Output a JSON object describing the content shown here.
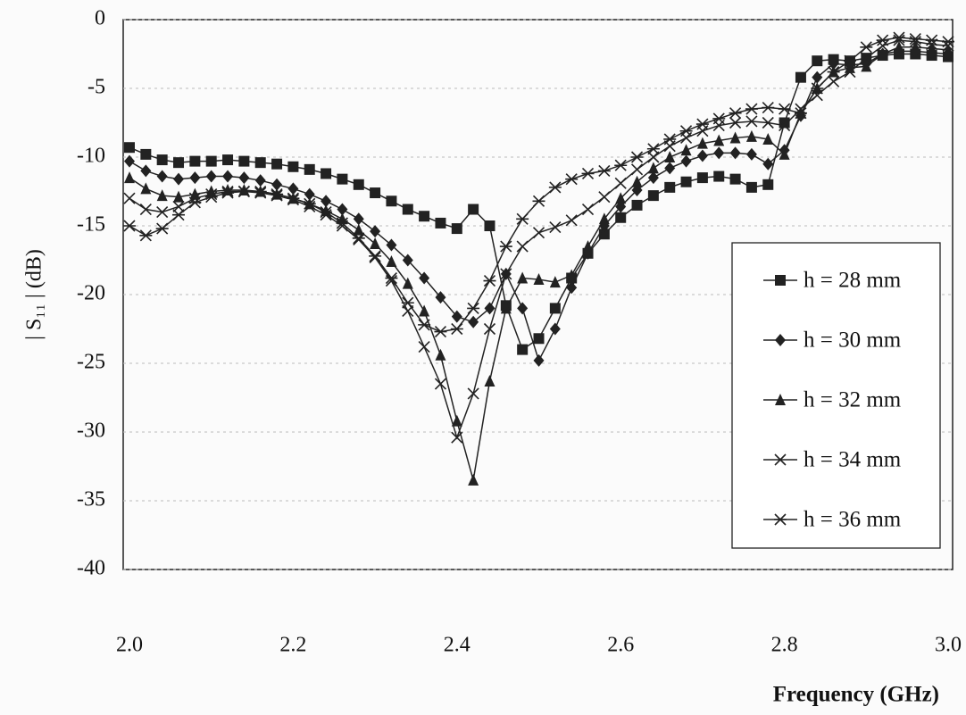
{
  "chart_data": {
    "type": "line",
    "x_label": "Frequency (GHz)",
    "y_label": "| S₁₁ | (dB)",
    "x": [
      2.0,
      2.02,
      2.04,
      2.06,
      2.08,
      2.1,
      2.12,
      2.14,
      2.16,
      2.18,
      2.2,
      2.22,
      2.24,
      2.26,
      2.28,
      2.3,
      2.32,
      2.34,
      2.36,
      2.38,
      2.4,
      2.42,
      2.44,
      2.46,
      2.48,
      2.5,
      2.52,
      2.54,
      2.56,
      2.58,
      2.6,
      2.62,
      2.64,
      2.66,
      2.68,
      2.7,
      2.72,
      2.74,
      2.76,
      2.78,
      2.8,
      2.82,
      2.84,
      2.86,
      2.88,
      2.9,
      2.92,
      2.94,
      2.96,
      2.98,
      3.0
    ],
    "series": [
      {
        "name": "h = 28 mm",
        "color": "#222222",
        "marker": "square",
        "values": [
          -9.3,
          -9.8,
          -10.2,
          -10.4,
          -10.3,
          -10.3,
          -10.2,
          -10.3,
          -10.4,
          -10.5,
          -10.7,
          -10.9,
          -11.2,
          -11.6,
          -12.0,
          -12.6,
          -13.2,
          -13.8,
          -14.3,
          -14.8,
          -15.2,
          -13.8,
          -15.0,
          -20.8,
          -24.0,
          -23.2,
          -21.0,
          -18.8,
          -17.0,
          -15.6,
          -14.4,
          -13.5,
          -12.8,
          -12.2,
          -11.8,
          -11.5,
          -11.4,
          -11.6,
          -12.2,
          -12.0,
          -7.5,
          -4.2,
          -3.0,
          -2.9,
          -3.0,
          -2.8,
          -2.6,
          -2.5,
          -2.5,
          -2.6,
          -2.7
        ]
      },
      {
        "name": "h = 30 mm",
        "color": "#222222",
        "marker": "diamond",
        "values": [
          -10.3,
          -11.0,
          -11.4,
          -11.6,
          -11.5,
          -11.4,
          -11.4,
          -11.5,
          -11.7,
          -12.0,
          -12.3,
          -12.7,
          -13.2,
          -13.8,
          -14.5,
          -15.4,
          -16.4,
          -17.5,
          -18.8,
          -20.2,
          -21.6,
          -22.0,
          -21.0,
          -18.5,
          -21.0,
          -24.8,
          -22.5,
          -19.5,
          -17.0,
          -15.0,
          -13.6,
          -12.4,
          -11.5,
          -10.8,
          -10.3,
          -9.9,
          -9.7,
          -9.7,
          -9.8,
          -10.5,
          -9.5,
          -7.0,
          -4.2,
          -3.2,
          -3.3,
          -3.2,
          -2.5,
          -2.3,
          -2.3,
          -2.4,
          -2.5
        ]
      },
      {
        "name": "h = 32 mm",
        "color": "#222222",
        "marker": "triangle",
        "values": [
          -11.5,
          -12.3,
          -12.8,
          -12.9,
          -12.7,
          -12.5,
          -12.4,
          -12.4,
          -12.5,
          -12.7,
          -13.0,
          -13.4,
          -13.9,
          -14.5,
          -15.3,
          -16.3,
          -17.6,
          -19.2,
          -21.2,
          -24.4,
          -29.2,
          -33.5,
          -26.3,
          -21.0,
          -18.8,
          -18.9,
          -19.1,
          -18.6,
          -16.5,
          -14.5,
          -13.0,
          -11.8,
          -10.8,
          -10.0,
          -9.5,
          -9.0,
          -8.8,
          -8.6,
          -8.5,
          -8.7,
          -9.8,
          -6.8,
          -5.0,
          -3.8,
          -3.5,
          -3.4,
          -2.5,
          -2.0,
          -2.0,
          -2.1,
          -2.2
        ]
      },
      {
        "name": "h = 34 mm",
        "color": "#222222",
        "marker": "x",
        "values": [
          -13.0,
          -13.8,
          -14.0,
          -13.6,
          -13.0,
          -12.7,
          -12.5,
          -12.5,
          -12.6,
          -12.8,
          -13.1,
          -13.6,
          -14.2,
          -15.0,
          -16.0,
          -17.3,
          -19.0,
          -21.2,
          -23.8,
          -26.5,
          -30.4,
          -27.2,
          -22.5,
          -18.5,
          -16.5,
          -15.5,
          -15.1,
          -14.6,
          -13.8,
          -12.9,
          -11.9,
          -10.9,
          -10.0,
          -9.2,
          -8.6,
          -8.1,
          -7.7,
          -7.5,
          -7.4,
          -7.5,
          -7.7,
          -6.5,
          -5.5,
          -4.5,
          -3.8,
          -2.8,
          -1.9,
          -1.5,
          -1.6,
          -1.8,
          -1.9
        ]
      },
      {
        "name": "h = 36 mm",
        "color": "#222222",
        "marker": "star",
        "values": [
          -15.0,
          -15.7,
          -15.2,
          -14.2,
          -13.3,
          -12.9,
          -12.6,
          -12.5,
          -12.5,
          -12.7,
          -13.0,
          -13.4,
          -14.0,
          -14.8,
          -15.9,
          -17.2,
          -18.8,
          -20.6,
          -22.2,
          -22.7,
          -22.5,
          -21.0,
          -19.0,
          -16.5,
          -14.5,
          -13.2,
          -12.2,
          -11.6,
          -11.2,
          -11.0,
          -10.6,
          -10.0,
          -9.4,
          -8.7,
          -8.1,
          -7.6,
          -7.2,
          -6.8,
          -6.5,
          -6.4,
          -6.5,
          -6.8,
          -5.0,
          -3.8,
          -3.0,
          -2.0,
          -1.5,
          -1.3,
          -1.4,
          -1.5,
          -1.6
        ]
      }
    ],
    "xlim": [
      2.0,
      3.0
    ],
    "xticks": [
      {
        "value": 2.0,
        "label": "2.0"
      },
      {
        "value": 2.2,
        "label": "2.2"
      },
      {
        "value": 2.4,
        "label": "2.4"
      },
      {
        "value": 2.6,
        "label": "2.6"
      },
      {
        "value": 2.8,
        "label": "2.8"
      },
      {
        "value": 3.0,
        "label": "3.0"
      }
    ],
    "ylim": [
      -40,
      0
    ],
    "yticks": [
      0,
      -5,
      -10,
      -15,
      -20,
      -25,
      -30,
      -35,
      -40
    ],
    "grid": true,
    "legend": "right"
  }
}
